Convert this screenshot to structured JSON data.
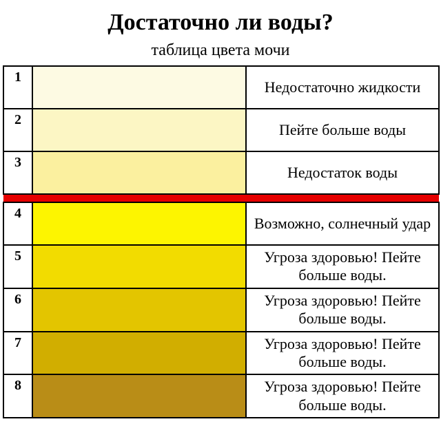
{
  "title": "Достаточно ли воды?",
  "subtitle": "таблица цвета мочи",
  "background_color": "#ffffff",
  "border_color": "#000000",
  "divider_color": "#e60000",
  "title_fontsize": 34,
  "subtitle_fontsize": 24,
  "num_fontsize": 20,
  "desc_fontsize": 22,
  "divider_after_row_index": 2,
  "rows": [
    {
      "num": "1",
      "color": "#fdfae3",
      "desc": "Недостаточно жидкости"
    },
    {
      "num": "2",
      "color": "#fcf6c4",
      "desc": "Пейте больше воды"
    },
    {
      "num": "3",
      "color": "#fbf09f",
      "desc": "Недостаток воды"
    },
    {
      "num": "4",
      "color": "#fdf500",
      "desc": "Возможно, солнечный удар"
    },
    {
      "num": "5",
      "color": "#f2dc00",
      "desc": "Угроза здоровью! Пейте больше воды."
    },
    {
      "num": "6",
      "color": "#e3c500",
      "desc": "Угроза здоровью! Пейте больше воды."
    },
    {
      "num": "7",
      "color": "#d1ae00",
      "desc": "Угроза здоровью! Пейте больше воды."
    },
    {
      "num": "8",
      "color": "#b98d17",
      "desc": "Угроза здоровью! Пейте больше воды."
    }
  ]
}
